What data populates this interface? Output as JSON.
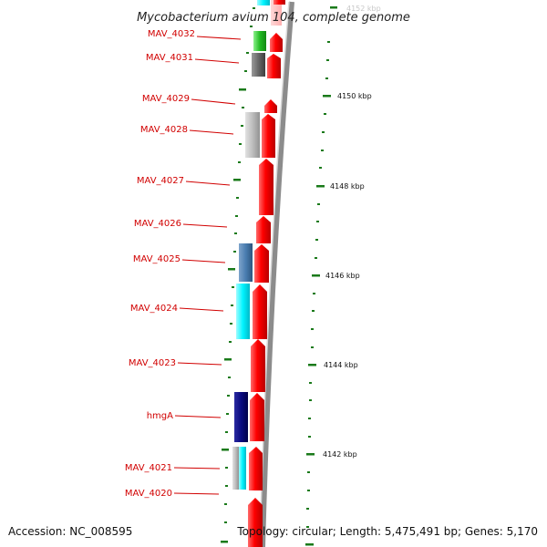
{
  "title": "Mycobacterium avium 104, complete genome",
  "footer": {
    "accession": "Accession: NC_008595",
    "topology": "Topology: circular; Length: 5,475,491 bp; Genes: 5,170"
  },
  "colors": {
    "gene_label": "#d10000",
    "forward_gene": "#ff0000",
    "backbone": "#8c8c8c",
    "tick": "#1a7a1a"
  },
  "gene_labels": [
    "MAV_4032",
    "MAV_4031",
    "MAV_4029",
    "MAV_4028",
    "MAV_4027",
    "MAV_4026",
    "MAV_4025",
    "MAV_4024",
    "MAV_4023",
    "hmgA",
    "MAV_4021",
    "MAV_4020"
  ],
  "kbp_labels": [
    "4152 kbp",
    "4150 kbp",
    "4148 kbp",
    "4146 kbp",
    "4144 kbp",
    "4142 kbp"
  ]
}
